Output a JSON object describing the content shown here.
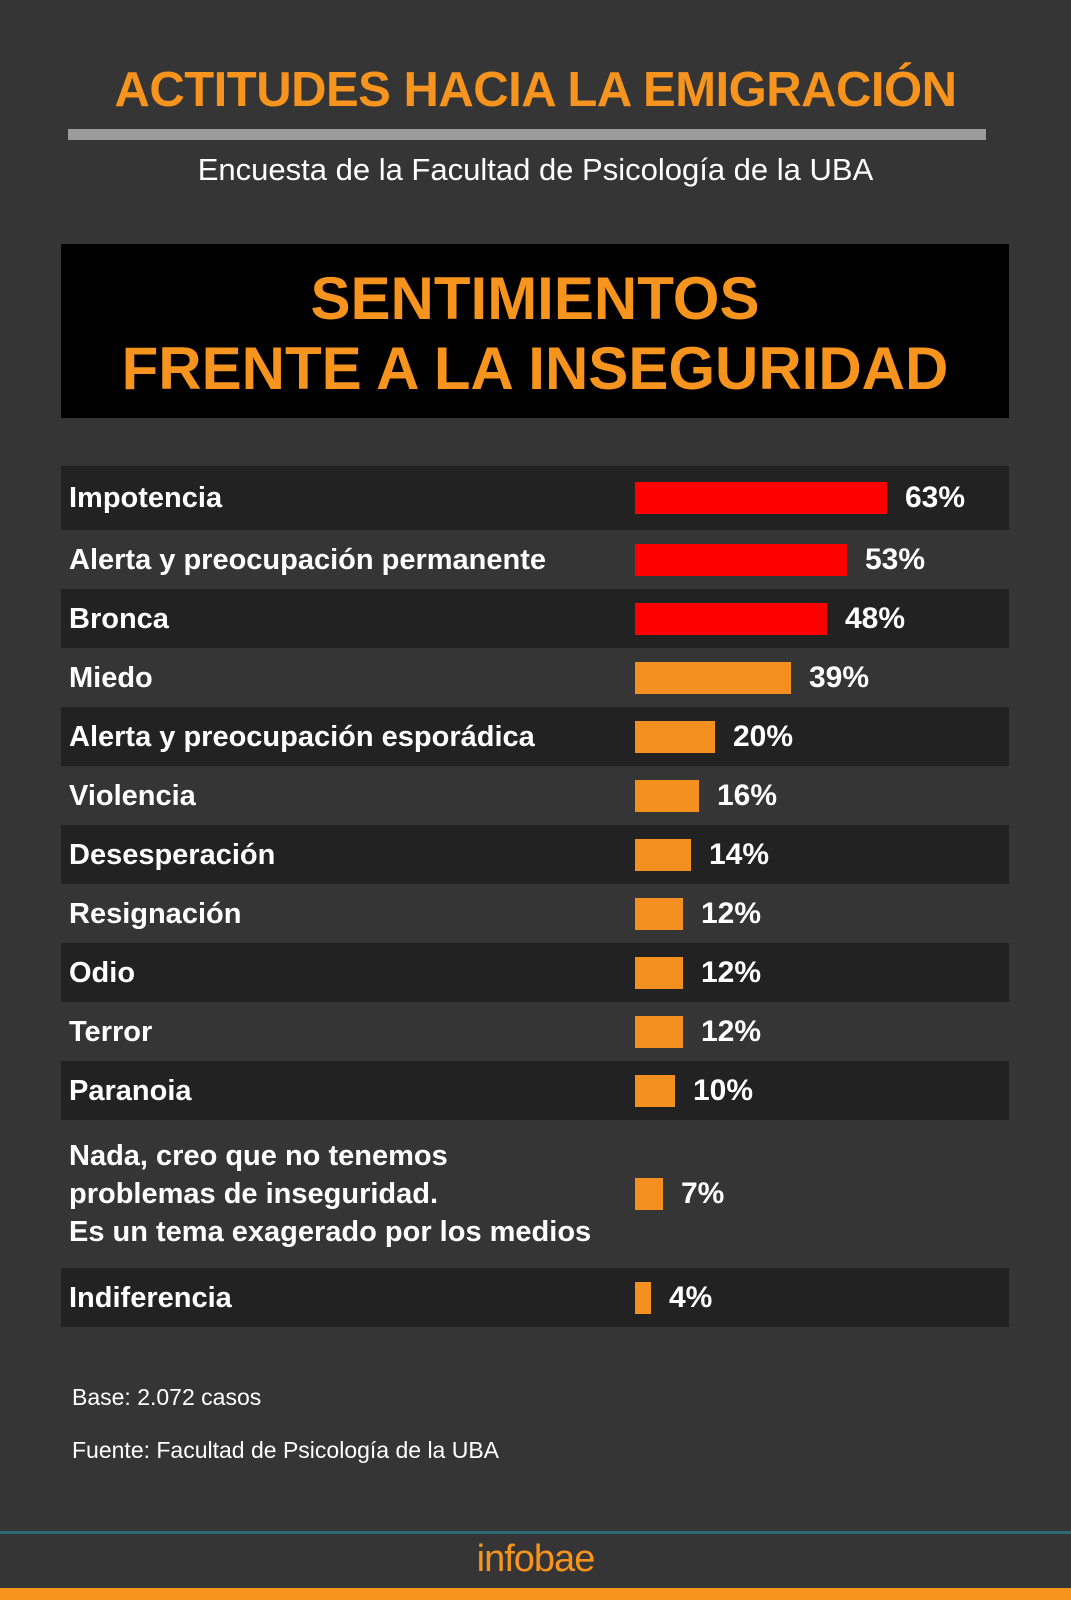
{
  "header": {
    "title": "ACTITUDES HACIA LA EMIGRACIÓN",
    "subtitle": "Encuesta de la Facultad de Psicología de la UBA",
    "box_title_line1": "SENTIMIENTOS",
    "box_title_line2": "FRENTE A LA INSEGURIDAD"
  },
  "colors": {
    "accent": "#f7941d",
    "highlight": "#ff0000",
    "bar": "#f39020",
    "background": "#353535",
    "stripe": "#222222"
  },
  "chart_data": {
    "type": "bar",
    "orientation": "horizontal",
    "title": "SENTIMIENTOS FRENTE A LA INSEGURIDAD",
    "categories": [
      "Impotencia",
      "Alerta y preocupación permanente",
      "Bronca",
      "Miedo",
      "Alerta y preocupación esporádica",
      "Violencia",
      "Desesperación",
      "Resignación",
      "Odio",
      "Terror",
      "Paranoia",
      "Nada, creo que no tenemos\nproblemas de inseguridad.\nEs un tema exagerado por los medios",
      "Indiferencia"
    ],
    "values": [
      63,
      53,
      48,
      39,
      20,
      16,
      14,
      12,
      12,
      12,
      10,
      7,
      4
    ],
    "value_labels": [
      "63%",
      "53%",
      "48%",
      "39%",
      "20%",
      "16%",
      "14%",
      "12%",
      "12%",
      "12%",
      "10%",
      "7%",
      "4%"
    ],
    "highlighted": [
      true,
      true,
      true,
      false,
      false,
      false,
      false,
      false,
      false,
      false,
      false,
      false,
      false
    ],
    "unit": "%",
    "grid": false
  },
  "footer": {
    "base": "Base: 2.072 casos",
    "source": "Fuente: Facultad de Psicología de la UBA",
    "logo": "infobae"
  }
}
